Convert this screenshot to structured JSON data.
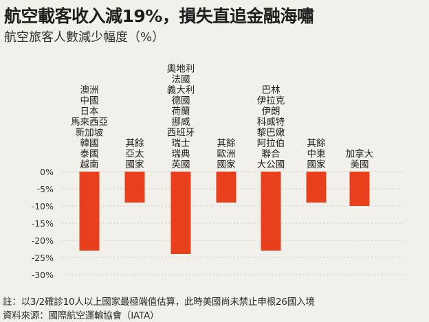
{
  "title": "航空載客收入減19%，損失直追金融海嘯",
  "subtitle": "航空旅客人數減少幅度（%）",
  "note": "註：以3/2確診10人以上國家最極端值估算，此時美國尚未禁止申根26國入境",
  "source": "資料來源：國際航空運輸協會（IATA）",
  "colors": {
    "bar": "#e8401c",
    "grid": "#c9c9c3",
    "background": "#f1f0ea"
  },
  "chart_data": {
    "type": "bar",
    "categories": [
      [
        "澳洲",
        "中國",
        "日本",
        "馬來西亞",
        "新加坡",
        "韓國",
        "泰國",
        "越南"
      ],
      [
        "其餘",
        "亞太",
        "國家"
      ],
      [
        "奧地利",
        "法國",
        "義大利",
        "德國",
        "荷蘭",
        "挪威",
        "西班牙",
        "瑞士",
        "瑞典",
        "英國"
      ],
      [
        "其餘",
        "歐洲",
        "國家"
      ],
      [
        "巴林",
        "伊拉克",
        "伊朗",
        "科威特",
        "黎巴嫩",
        "阿拉伯",
        "聯合",
        "大公國"
      ],
      [
        "其餘",
        "中東",
        "國家"
      ],
      [
        "加拿大",
        "美國"
      ]
    ],
    "values": [
      -23,
      -9,
      -24,
      -9,
      -23,
      -9,
      -10
    ],
    "yticks": [
      "0%",
      "-5%",
      "-10%",
      "-15%",
      "-20%",
      "-25%",
      "-30%"
    ],
    "ylim": [
      -30,
      0
    ],
    "grid": true
  }
}
